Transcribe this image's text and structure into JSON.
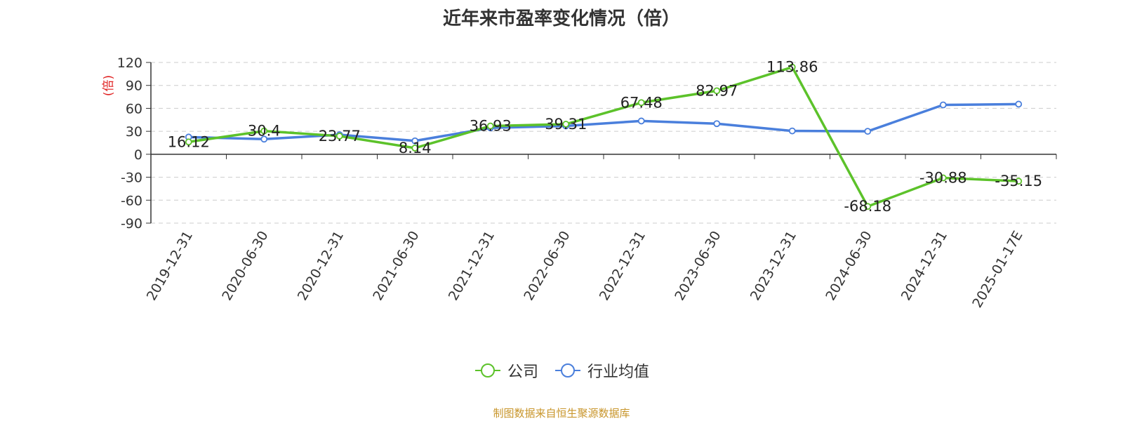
{
  "chart_data": {
    "type": "line",
    "title": "近年来市盈率变化情况（倍）",
    "ylabel": "(倍)",
    "xlabel": "",
    "ylim": [
      -90,
      120
    ],
    "yticks": [
      120,
      90,
      60,
      30,
      0,
      -30,
      -60,
      -90
    ],
    "grid": true,
    "legend_position": "bottom-center",
    "categories": [
      "2019-12-31",
      "2020-06-30",
      "2020-12-31",
      "2021-06-30",
      "2021-12-31",
      "2022-06-30",
      "2022-12-31",
      "2023-06-30",
      "2023-12-31",
      "2024-06-30",
      "2024-12-31",
      "2025-01-17E"
    ],
    "series": [
      {
        "name": "公司",
        "color": "#5cc22a",
        "values": [
          16.12,
          30.4,
          23.77,
          8.14,
          36.93,
          39.31,
          67.48,
          82.97,
          113.86,
          -68.18,
          -30.88,
          -35.15
        ],
        "labels": [
          "16.12",
          "30.4",
          "23.77",
          "8.14",
          "36.93",
          "39.31",
          "67.48",
          "82.97",
          "113.86",
          "-68.18",
          "-30.88",
          "-35.15"
        ]
      },
      {
        "name": "行业均值",
        "color": "#4a7fdc",
        "values": [
          22.5,
          19.8,
          25.5,
          17.5,
          34.5,
          37.0,
          43.5,
          40.0,
          30.5,
          30.0,
          64.5,
          65.5
        ]
      }
    ]
  },
  "source_note": "制图数据来自恒生聚源数据库"
}
